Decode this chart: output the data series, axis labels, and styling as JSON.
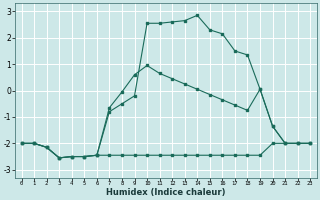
{
  "xlabel": "Humidex (Indice chaleur)",
  "background_color": "#cde8e8",
  "grid_color": "#b8d8d8",
  "line_color": "#1a6b5a",
  "xlim": [
    -0.5,
    23.5
  ],
  "ylim": [
    -3.3,
    3.3
  ],
  "yticks": [
    -3,
    -2,
    -1,
    0,
    1,
    2,
    3
  ],
  "xticks": [
    0,
    1,
    2,
    3,
    4,
    5,
    6,
    7,
    8,
    9,
    10,
    11,
    12,
    13,
    14,
    15,
    16,
    17,
    18,
    19,
    20,
    21,
    22,
    23
  ],
  "line1_x": [
    0,
    1,
    2,
    3,
    4,
    5,
    6,
    7,
    8,
    9,
    10,
    11,
    12,
    13,
    14,
    15,
    16,
    17,
    18,
    19,
    20,
    21,
    22,
    23
  ],
  "line1_y": [
    -2.0,
    -2.0,
    -2.15,
    -2.55,
    -2.5,
    -2.5,
    -2.45,
    -2.45,
    -2.45,
    -2.45,
    -2.45,
    -2.45,
    -2.45,
    -2.45,
    -2.45,
    -2.45,
    -2.45,
    -2.45,
    -2.45,
    -2.45,
    -2.0,
    -2.0,
    -2.0,
    -2.0
  ],
  "line2_x": [
    0,
    1,
    2,
    3,
    4,
    5,
    6,
    7,
    8,
    9,
    10,
    11,
    12,
    13,
    14,
    15,
    16,
    17,
    18,
    19,
    20,
    21,
    22,
    23
  ],
  "line2_y": [
    -2.0,
    -2.0,
    -2.15,
    -2.55,
    -2.5,
    -2.5,
    -2.45,
    -0.8,
    -0.5,
    -0.2,
    2.55,
    2.55,
    2.6,
    2.65,
    2.85,
    2.3,
    2.15,
    1.5,
    1.35,
    0.05,
    -1.35,
    -2.0,
    -2.0,
    -2.0
  ],
  "line3_x": [
    0,
    1,
    2,
    3,
    4,
    5,
    6,
    7,
    8,
    9,
    10,
    11,
    12,
    13,
    14,
    15,
    16,
    17,
    18,
    19,
    20,
    21,
    22,
    23
  ],
  "line3_y": [
    -2.0,
    -2.0,
    -2.15,
    -2.55,
    -2.5,
    -2.5,
    -2.45,
    -0.65,
    -0.05,
    0.6,
    0.95,
    0.65,
    0.45,
    0.25,
    0.05,
    -0.15,
    -0.35,
    -0.55,
    -0.75,
    0.05,
    -1.35,
    -2.0,
    -2.0,
    -2.0
  ]
}
